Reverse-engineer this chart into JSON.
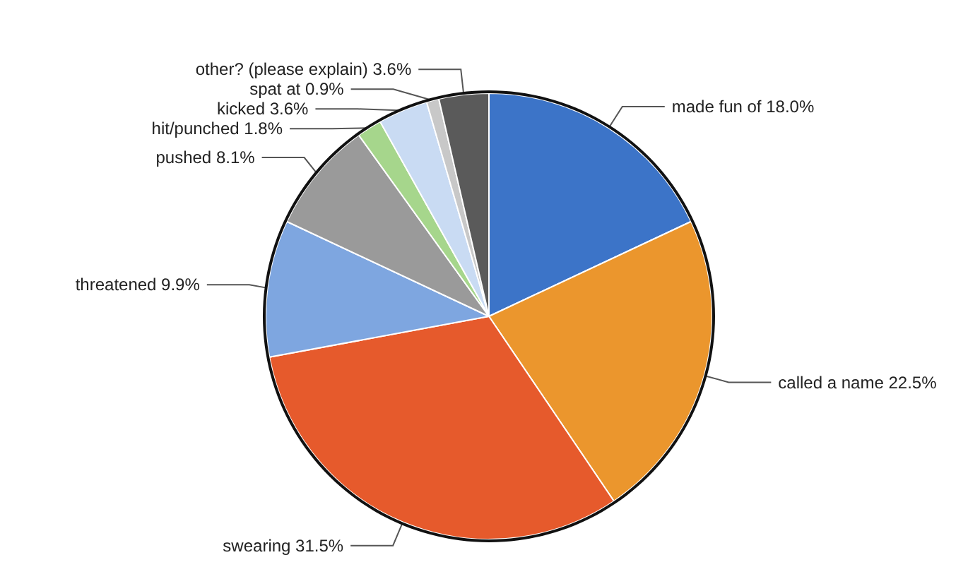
{
  "chart_data": {
    "type": "pie",
    "categories": [
      "made fun of",
      "called a name",
      "swearing",
      "threatened",
      "pushed",
      "hit/punched",
      "kicked",
      "spat at",
      "other? (please explain)"
    ],
    "values": [
      18.0,
      22.5,
      31.5,
      9.9,
      8.1,
      1.8,
      3.6,
      0.9,
      3.6
    ],
    "value_labels": [
      "18.0%",
      "22.5%",
      "31.5%",
      "9.9%",
      "8.1%",
      "1.8%",
      "3.6%",
      "0.9%",
      "3.6%"
    ],
    "colors": [
      "#3c74c8",
      "#eb962d",
      "#e65a2c",
      "#7ea6e0",
      "#9a9a9a",
      "#a6d68c",
      "#c9dbf3",
      "#c8c8c8",
      "#5a5a5a"
    ],
    "legend": false
  }
}
